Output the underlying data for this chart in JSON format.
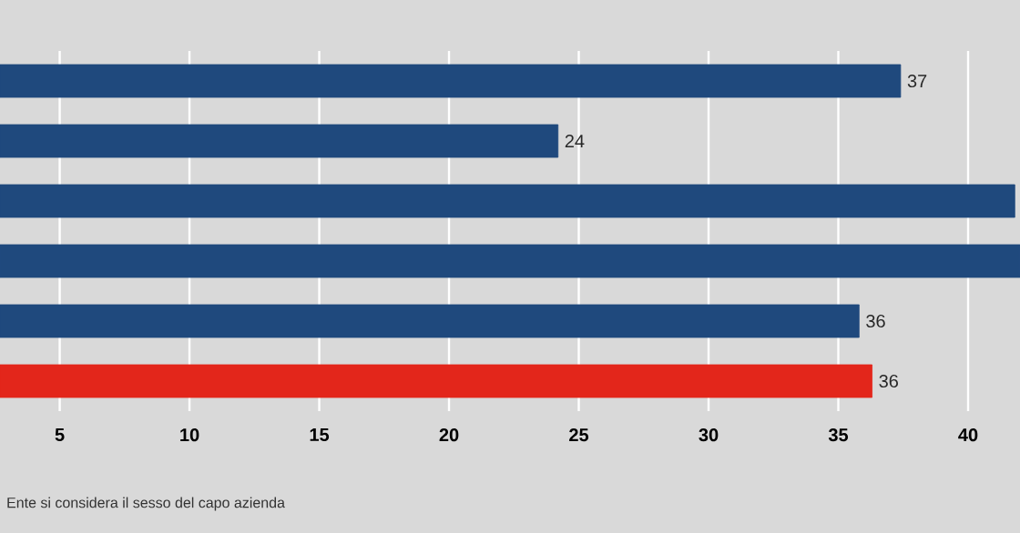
{
  "chart_data": {
    "type": "bar",
    "orientation": "horizontal",
    "categories": [
      null,
      null,
      null,
      null,
      null,
      null
    ],
    "values": [
      37.4,
      24.2,
      41.8,
      42,
      35.8,
      36.3
    ],
    "value_labels": [
      "37",
      "24",
      null,
      null,
      "36",
      "36"
    ],
    "colors": [
      "#1f497d",
      "#1f497d",
      "#1f497d",
      "#1f497d",
      "#1f497d",
      "#e3261b"
    ],
    "xlim": [
      2.7,
      42
    ],
    "xticks": [
      5,
      10,
      15,
      20,
      25,
      30,
      35,
      40
    ],
    "grid": true,
    "annotations": [
      "Ente si considera il sesso del capo azienda"
    ]
  }
}
